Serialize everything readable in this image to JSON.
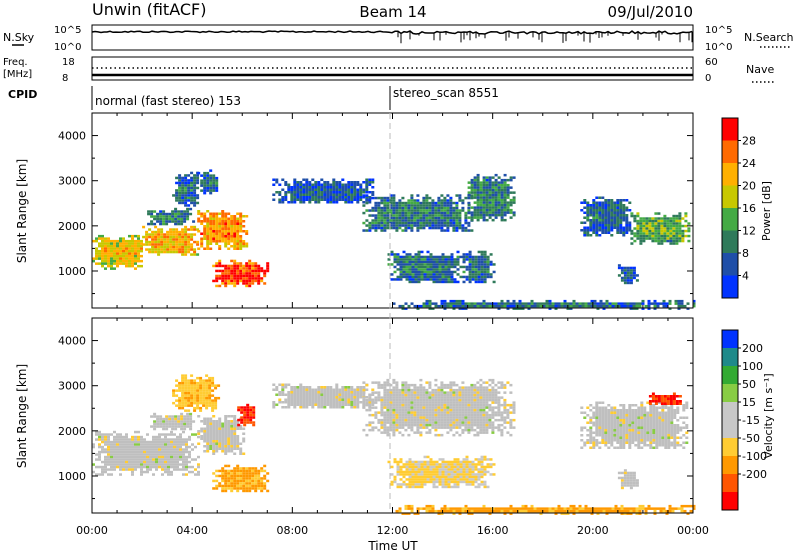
{
  "header": {
    "station": "Unwin (fitACF)",
    "beam": "Beam 14",
    "date": "09/Jul/2010"
  },
  "top_panels": {
    "nsky_label": "N.Sky",
    "nsearch_label": "N.Search",
    "noise_ticks": [
      "10^5",
      "10^0"
    ],
    "freq_label": "Freq.",
    "freq_unit": "[MHz]",
    "freq_ticks": [
      "18",
      "8"
    ],
    "nave_label": "Nave",
    "nave_ticks": [
      "60",
      "0"
    ],
    "cpid_label": "CPID",
    "cpid_segments": [
      {
        "label": "normal (fast stereo) 153",
        "start_h": 0
      },
      {
        "label": "stereo_scan 8551",
        "start_h": 12
      }
    ]
  },
  "colors": {
    "power_scale": [
      "#0033ff",
      "#1f4fa8",
      "#2f7a5a",
      "#44aa44",
      "#c8c800",
      "#ffb000",
      "#ff6a00",
      "#ff0000"
    ],
    "velocity_scale": [
      "#ff0000",
      "#ff5500",
      "#ff9900",
      "#ffcc33",
      "#c8c8c8",
      "#c8c8c8",
      "#88cc44",
      "#33aa33",
      "#1f8a8a",
      "#0033ff"
    ],
    "ground_scatter": "#bfbfbf"
  },
  "chart_data": [
    {
      "type": "heatmap",
      "name": "power",
      "ylabel": "Slant Range [km]",
      "xlabel": "Time UT",
      "x_ticks": [
        "00:00",
        "04:00",
        "08:00",
        "12:00",
        "16:00",
        "20:00",
        "00:00"
      ],
      "xlim_hours": [
        0,
        24
      ],
      "ylim_km": [
        180,
        4500
      ],
      "y_ticks": [
        1000,
        2000,
        3000,
        4000
      ],
      "colorbar": {
        "label": "Power [dB]",
        "range": [
          0,
          32
        ],
        "ticks": [
          4,
          8,
          12,
          16,
          20,
          24,
          28
        ]
      },
      "regions": [
        {
          "t0": 0.0,
          "t1": 2.0,
          "r_lo": 1050,
          "r_hi": 1800,
          "power": 18
        },
        {
          "t0": 2.0,
          "t1": 4.2,
          "r_lo": 1350,
          "r_hi": 2000,
          "power": 20
        },
        {
          "t0": 4.2,
          "t1": 6.2,
          "r_lo": 1500,
          "r_hi": 2350,
          "power": 22
        },
        {
          "t0": 2.2,
          "t1": 4.0,
          "r_lo": 2050,
          "r_hi": 2400,
          "power": 8
        },
        {
          "t0": 3.2,
          "t1": 4.2,
          "r_lo": 2450,
          "r_hi": 3200,
          "power": 6
        },
        {
          "t0": 4.2,
          "t1": 5.0,
          "r_lo": 2750,
          "r_hi": 3250,
          "power": 5
        },
        {
          "t0": 4.8,
          "t1": 7.0,
          "r_lo": 650,
          "r_hi": 1250,
          "power": 26
        },
        {
          "t0": 7.2,
          "t1": 11.2,
          "r_lo": 2500,
          "r_hi": 3050,
          "power": 4
        },
        {
          "t0": 10.8,
          "t1": 15.2,
          "r_lo": 1900,
          "r_hi": 2700,
          "power": 7
        },
        {
          "t0": 15.0,
          "t1": 16.8,
          "r_lo": 2100,
          "r_hi": 3150,
          "power": 8
        },
        {
          "t0": 11.8,
          "t1": 14.8,
          "r_lo": 750,
          "r_hi": 1450,
          "power": 7
        },
        {
          "t0": 14.8,
          "t1": 16.0,
          "r_lo": 750,
          "r_hi": 1450,
          "power": 6
        },
        {
          "t0": 12.0,
          "t1": 24.0,
          "r_lo": 190,
          "r_hi": 360,
          "power": 6
        },
        {
          "t0": 19.5,
          "t1": 21.5,
          "r_lo": 1800,
          "r_hi": 2650,
          "power": 5
        },
        {
          "t0": 21.5,
          "t1": 23.8,
          "r_lo": 1600,
          "r_hi": 2300,
          "power": 12
        },
        {
          "t0": 21.0,
          "t1": 21.8,
          "r_lo": 750,
          "r_hi": 1150,
          "power": 4
        }
      ]
    },
    {
      "type": "heatmap",
      "name": "velocity",
      "ylabel": "Slant Range [km]",
      "xlabel": "Time UT",
      "x_ticks": [
        "00:00",
        "04:00",
        "08:00",
        "12:00",
        "16:00",
        "20:00",
        "00:00"
      ],
      "xlim_hours": [
        0,
        24
      ],
      "ylim_km": [
        180,
        4500
      ],
      "y_ticks": [
        1000,
        2000,
        3000,
        4000
      ],
      "colorbar": {
        "label": "Velocity [m s⁻¹]",
        "range": [
          -250,
          250
        ],
        "ticks": [
          "200",
          "100",
          "50",
          "15",
          "-15",
          "-50",
          "-100",
          "-200"
        ]
      },
      "regions": [
        {
          "t0": 0.0,
          "t1": 4.2,
          "r_lo": 1050,
          "r_hi": 2000,
          "vel": 0
        },
        {
          "t0": 4.2,
          "t1": 6.0,
          "r_lo": 1500,
          "r_hi": 2350,
          "vel": 0
        },
        {
          "t0": 3.2,
          "t1": 5.0,
          "r_lo": 2450,
          "r_hi": 3250,
          "vel": -40
        },
        {
          "t0": 2.2,
          "t1": 4.0,
          "r_lo": 2050,
          "r_hi": 2400,
          "vel": 0
        },
        {
          "t0": 4.8,
          "t1": 7.0,
          "r_lo": 650,
          "r_hi": 1250,
          "vel": -60
        },
        {
          "t0": 7.2,
          "t1": 11.2,
          "r_lo": 2500,
          "r_hi": 3050,
          "vel": 0
        },
        {
          "t0": 10.8,
          "t1": 16.8,
          "r_lo": 1900,
          "r_hi": 3150,
          "vel": 0
        },
        {
          "t0": 11.8,
          "t1": 16.0,
          "r_lo": 750,
          "r_hi": 1450,
          "vel": -20
        },
        {
          "t0": 12.0,
          "t1": 24.0,
          "r_lo": 190,
          "r_hi": 360,
          "vel": -60
        },
        {
          "t0": 19.5,
          "t1": 23.8,
          "r_lo": 1600,
          "r_hi": 2650,
          "vel": 0
        },
        {
          "t0": 21.0,
          "t1": 21.8,
          "r_lo": 750,
          "r_hi": 1150,
          "vel": 0
        },
        {
          "t0": 5.8,
          "t1": 6.5,
          "r_lo": 2150,
          "r_hi": 2600,
          "vel": -200
        },
        {
          "t0": 22.0,
          "t1": 23.5,
          "r_lo": 2600,
          "r_hi": 2850,
          "vel": -200
        }
      ]
    }
  ]
}
